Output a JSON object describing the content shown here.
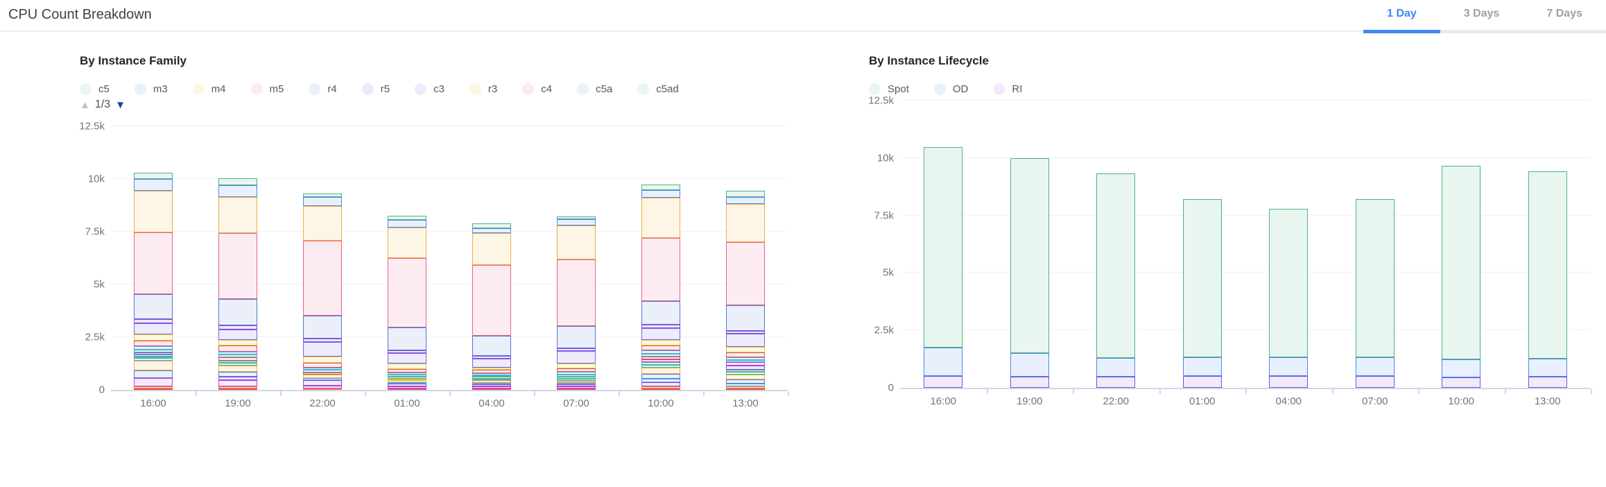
{
  "header": {
    "title": "CPU Count Breakdown",
    "tabs": [
      {
        "label": "1 Day",
        "active": true
      },
      {
        "label": "3 Days",
        "active": false
      },
      {
        "label": "7 Days",
        "active": false
      }
    ]
  },
  "palette": {
    "green": {
      "stroke": "#4fb384",
      "fill": "#e9f6ef"
    },
    "blue": {
      "stroke": "#4f86ec",
      "fill": "#e9f0fd"
    },
    "amber": {
      "stroke": "#ecaf41",
      "fill": "#fdf5e6"
    },
    "rose": {
      "stroke": "#ea6287",
      "fill": "#fcebf0"
    },
    "steel": {
      "stroke": "#5079d0",
      "fill": "#eaeffa"
    },
    "purple": {
      "stroke": "#8d46e0",
      "fill": "#f1e8fc"
    },
    "violet": {
      "stroke": "#7466e3",
      "fill": "#edebfc"
    },
    "yellow": {
      "stroke": "#e3c83f",
      "fill": "#fcf8e0"
    },
    "red": {
      "stroke": "#e84f5b",
      "fill": "#fdeaea"
    },
    "sky": {
      "stroke": "#55a4e6",
      "fill": "#e8f3fc"
    },
    "teal": {
      "stroke": "#3fb6ae",
      "fill": "#e6f6f5"
    },
    "magenta": {
      "stroke": "#c13fe0",
      "fill": "#f7e8fb"
    },
    "orange": {
      "stroke": "#ef8432",
      "fill": "#fdefe3"
    },
    "indigo": {
      "stroke": "#6c55de",
      "fill": "#f2eafb"
    }
  },
  "chart_data": [
    {
      "type": "bar",
      "stacked": true,
      "title": "By Instance Family",
      "categories": [
        "16:00",
        "19:00",
        "22:00",
        "01:00",
        "04:00",
        "07:00",
        "10:00",
        "13:00"
      ],
      "ylim": [
        0,
        12500
      ],
      "yticks": [
        {
          "value": 0,
          "label": "0"
        },
        {
          "value": 2500,
          "label": "2.5k"
        },
        {
          "value": 5000,
          "label": "5k"
        },
        {
          "value": 7500,
          "label": "7.5k"
        },
        {
          "value": 10000,
          "label": "10k"
        },
        {
          "value": 12500,
          "label": "12.5k"
        }
      ],
      "legend_position": "top",
      "grid": true,
      "pager": {
        "page": 1,
        "pages": 3,
        "label": "1/3",
        "up_icon": "up-triangle",
        "down_icon": "down-triangle"
      },
      "series": [
        {
          "name": "c5",
          "color": "green",
          "values": [
            300,
            350,
            150,
            200,
            230,
            150,
            250,
            280
          ]
        },
        {
          "name": "m3",
          "color": "blue",
          "values": [
            550,
            550,
            420,
            350,
            220,
            300,
            380,
            350
          ]
        },
        {
          "name": "m4",
          "color": "amber",
          "values": [
            2000,
            1700,
            1650,
            1450,
            1530,
            1600,
            1900,
            1800
          ]
        },
        {
          "name": "m5",
          "color": "rose",
          "values": [
            2900,
            3150,
            3550,
            3300,
            3350,
            3150,
            3000,
            3000
          ]
        },
        {
          "name": "r4",
          "color": "steel",
          "values": [
            1200,
            1250,
            1100,
            1100,
            950,
            1050,
            1100,
            1200
          ]
        },
        {
          "name": "r5",
          "color": "purple",
          "values": [
            180,
            180,
            150,
            120,
            120,
            150,
            180,
            150
          ]
        },
        {
          "name": "c3",
          "color": "violet",
          "values": [
            550,
            500,
            700,
            500,
            450,
            600,
            550,
            600
          ]
        },
        {
          "name": "r3",
          "color": "yellow",
          "values": [
            300,
            280,
            300,
            250,
            100,
            200,
            250,
            280
          ]
        },
        {
          "name": "c4",
          "color": "red",
          "values": [
            250,
            280,
            220,
            180,
            160,
            180,
            250,
            220
          ]
        },
        {
          "name": "c5a",
          "color": "sky",
          "values": [
            150,
            150,
            120,
            100,
            90,
            120,
            150,
            130
          ]
        },
        {
          "name": "c5ad",
          "color": "teal",
          "values": [
            140,
            130,
            110,
            90,
            80,
            110,
            130,
            120
          ]
        }
      ],
      "unlabeled_bottom_segments": [
        [
          {
            "color": "red",
            "value": 60
          },
          {
            "color": "orange",
            "value": 50
          },
          {
            "color": "magenta",
            "value": 380
          },
          {
            "color": "steel",
            "value": 380
          },
          {
            "color": "amber",
            "value": 450
          },
          {
            "color": "sky",
            "value": 130
          },
          {
            "color": "teal",
            "value": 90
          },
          {
            "color": "green",
            "value": 90
          },
          {
            "color": "purple",
            "value": 100
          }
        ],
        [
          {
            "color": "red",
            "value": 60
          },
          {
            "color": "orange",
            "value": 50
          },
          {
            "color": "magenta",
            "value": 300
          },
          {
            "color": "purple",
            "value": 150
          },
          {
            "color": "steel",
            "value": 250
          },
          {
            "color": "amber",
            "value": 300
          },
          {
            "color": "green",
            "value": 120
          },
          {
            "color": "teal",
            "value": 100
          },
          {
            "color": "red",
            "value": 150
          }
        ],
        [
          {
            "color": "orange",
            "value": 80
          },
          {
            "color": "magenta",
            "value": 100
          },
          {
            "color": "purple",
            "value": 280
          },
          {
            "color": "sky",
            "value": 90
          },
          {
            "color": "amber",
            "value": 180
          },
          {
            "color": "red",
            "value": 100
          }
        ],
        [
          {
            "color": "red",
            "value": 60
          },
          {
            "color": "magenta",
            "value": 80
          },
          {
            "color": "purple",
            "value": 120
          },
          {
            "color": "sky",
            "value": 70
          },
          {
            "color": "yellow",
            "value": 60
          },
          {
            "color": "amber",
            "value": 80
          },
          {
            "color": "green",
            "value": 90
          }
        ],
        [
          {
            "color": "red",
            "value": 50
          },
          {
            "color": "magenta",
            "value": 70
          },
          {
            "color": "purple",
            "value": 90
          },
          {
            "color": "sky",
            "value": 80
          },
          {
            "color": "orange",
            "value": 110
          },
          {
            "color": "teal",
            "value": 70
          },
          {
            "color": "green",
            "value": 50
          }
        ],
        [
          {
            "color": "red",
            "value": 60
          },
          {
            "color": "magenta",
            "value": 70
          },
          {
            "color": "purple",
            "value": 90
          },
          {
            "color": "sky",
            "value": 80
          },
          {
            "color": "orange",
            "value": 100
          },
          {
            "color": "teal",
            "value": 90
          },
          {
            "color": "green",
            "value": 100
          }
        ],
        [
          {
            "color": "red",
            "value": 70
          },
          {
            "color": "orange",
            "value": 60
          },
          {
            "color": "purple",
            "value": 200
          },
          {
            "color": "sky",
            "value": 150
          },
          {
            "color": "steel",
            "value": 250
          },
          {
            "color": "amber",
            "value": 300
          },
          {
            "color": "teal",
            "value": 120
          },
          {
            "color": "green",
            "value": 120
          },
          {
            "color": "magenta",
            "value": 130
          },
          {
            "color": "red",
            "value": 160
          }
        ],
        [
          {
            "color": "red",
            "value": 60
          },
          {
            "color": "orange",
            "value": 70
          },
          {
            "color": "sky",
            "value": 120
          },
          {
            "color": "steel",
            "value": 200
          },
          {
            "color": "amber",
            "value": 250
          },
          {
            "color": "teal",
            "value": 120
          },
          {
            "color": "green",
            "value": 110
          },
          {
            "color": "purple",
            "value": 180
          },
          {
            "color": "magenta",
            "value": 160
          }
        ]
      ]
    },
    {
      "type": "bar",
      "stacked": true,
      "title": "By Instance Lifecycle",
      "categories": [
        "16:00",
        "19:00",
        "22:00",
        "01:00",
        "04:00",
        "07:00",
        "10:00",
        "13:00"
      ],
      "ylim": [
        0,
        12500
      ],
      "yticks": [
        {
          "value": 0,
          "label": "0"
        },
        {
          "value": 2500,
          "label": "2.5k"
        },
        {
          "value": 5000,
          "label": "5k"
        },
        {
          "value": 7500,
          "label": "7.5k"
        },
        {
          "value": 10000,
          "label": "10k"
        },
        {
          "value": 12500,
          "label": "12.5k"
        }
      ],
      "legend_position": "top",
      "grid": true,
      "series": [
        {
          "name": "Spot",
          "color": "green",
          "values": [
            8730,
            8500,
            8030,
            6880,
            6480,
            6870,
            8400,
            8160
          ]
        },
        {
          "name": "OD",
          "color": "blue",
          "values": [
            1250,
            1020,
            820,
            820,
            820,
            830,
            800,
            800
          ]
        },
        {
          "name": "RI",
          "color": "indigo",
          "values": [
            500,
            480,
            480,
            500,
            500,
            500,
            450,
            470
          ]
        }
      ]
    }
  ]
}
